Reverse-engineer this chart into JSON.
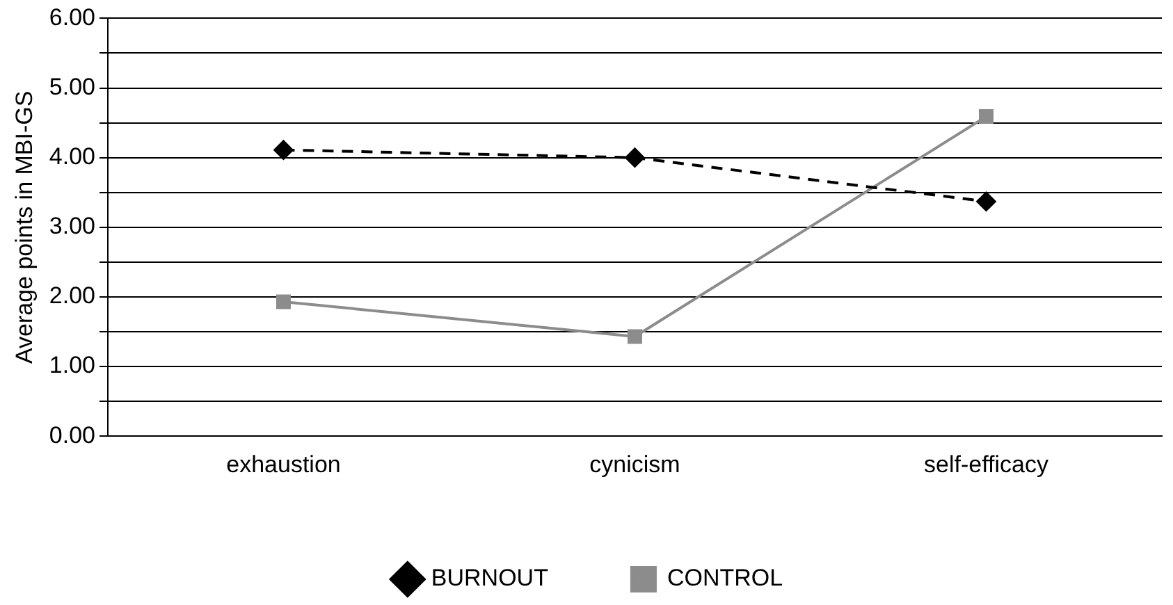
{
  "chart_data": {
    "type": "line",
    "ylabel": "Average points in MBI-GS",
    "categories": [
      "exhaustion",
      "cynicism",
      "self-efficacy"
    ],
    "series": [
      {
        "name": "BURNOUT",
        "color": "#000000",
        "values": [
          4.11,
          4.0,
          3.37
        ],
        "marker": "diamond",
        "line_style": "dashed"
      },
      {
        "name": "CONTROL",
        "color": "#8c8c8c",
        "values": [
          1.93,
          1.43,
          4.59
        ],
        "marker": "square",
        "line_style": "solid"
      }
    ],
    "ylim": [
      0,
      6
    ],
    "yticks": [
      "0.00",
      {
        "value": 0.5,
        "label": null
      },
      {
        "value": 1,
        "label": "1.00"
      },
      {
        "value": 1.5,
        "label": null
      },
      {
        "value": 2,
        "label": "2.00"
      },
      {
        "value": 2.5,
        "label": null
      },
      {
        "value": 3,
        "label": "3.00"
      },
      {
        "value": 3.5,
        "label": null
      },
      {
        "value": 4,
        "label": "4.00"
      },
      {
        "value": 4.5,
        "label": null
      },
      {
        "value": 5,
        "label": "5.00"
      },
      {
        "value": 5.5,
        "label": null
      },
      {
        "value": 6,
        "label": "6.00"
      }
    ],
    "grid": "y",
    "legend": "bottom"
  }
}
